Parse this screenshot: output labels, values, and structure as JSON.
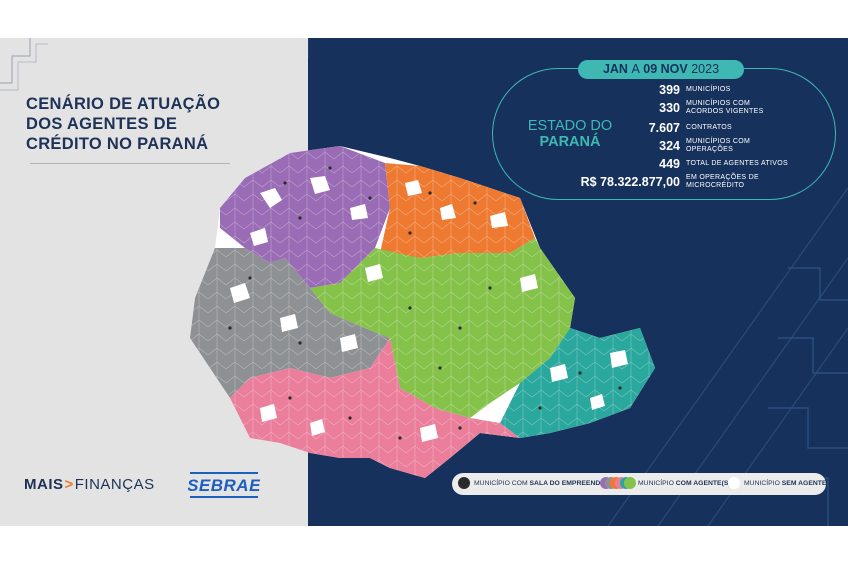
{
  "title_lines": [
    "CENÁRIO DE ATUAÇÃO",
    "DOS AGENTES DE",
    "CRÉDITO NO PARANÁ"
  ],
  "date": {
    "part1": "JAN",
    "part2": "A",
    "part3": "09 NOV",
    "part4": "2023"
  },
  "state": {
    "line1": "ESTADO DO",
    "line2": "PARANÁ"
  },
  "stats": [
    {
      "value": "399",
      "label": "MUNICÍPIOS"
    },
    {
      "value": "330",
      "label": "MUNICÍPIOS COM ACORDOS VIGENTES"
    },
    {
      "value": "7.607",
      "label": "CONTRATOS"
    },
    {
      "value": "324",
      "label": "MUNICÍPIOS COM OPERAÇÕES"
    },
    {
      "value": "449",
      "label": "TOTAL DE AGENTES ATIVOS"
    },
    {
      "value": "R$ 78.322.877,00",
      "label": "EM OPERAÇÕES DE MICROCRÉDITO"
    }
  ],
  "legend": {
    "item1_prefix": "MUNICÍPIO COM",
    "item1_bold": "SALA DO EMPREENDEDOR",
    "item2_prefix": "MUNICÍPIO",
    "item2_bold": "COM AGENTE(S)",
    "item3_prefix": "MUNICÍPIO",
    "item3_bold": "SEM AGENTE"
  },
  "logos": {
    "maisfinancas_bold": "MAIS",
    "maisfinancas_light": "FINANÇAS",
    "sebrae": "SEBRAE"
  },
  "colors": {
    "navy": "#16325c",
    "teal": "#3fb7b3",
    "purple": "#9a6cb5",
    "orange": "#ee7a32",
    "green": "#85c24a",
    "gray": "#8e9193",
    "pink": "#ea7e9b",
    "region_teal": "#2aa89e",
    "sem_agente": "#ffffff",
    "sala": "#2b2b2b"
  }
}
